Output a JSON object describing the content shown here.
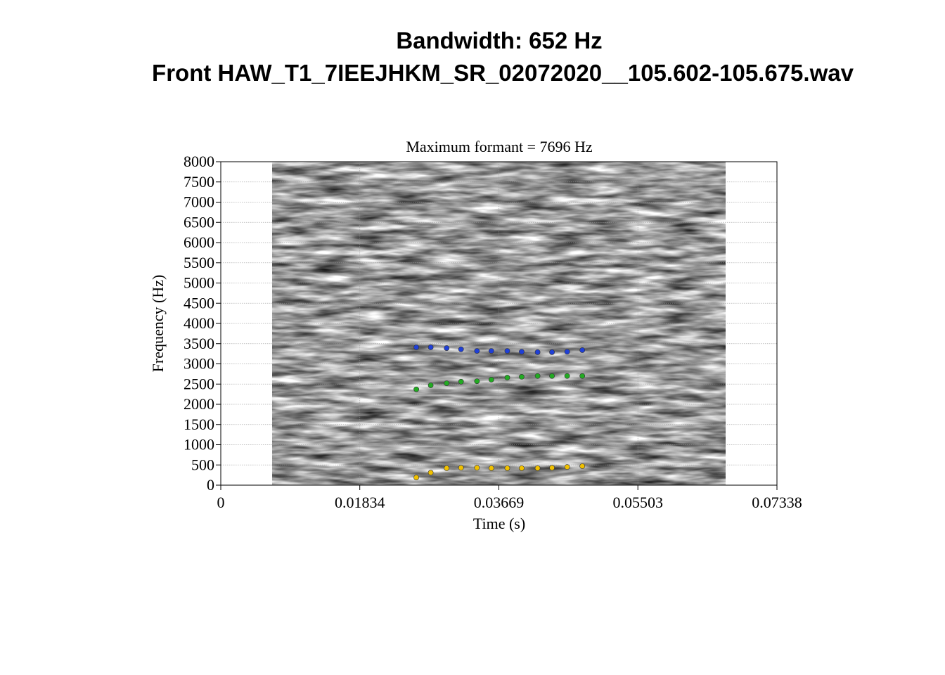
{
  "chart_data": {
    "type": "scatter",
    "title": "Bandwidth: 652 Hz",
    "subtitle": "Front HAW_T1_7IEEJHKM_SR_02072020__105.602-105.675.wav",
    "plot_title": "Maximum formant = 7696 Hz",
    "x_label": "Time (s)",
    "y_label": "Frequency (Hz)",
    "x": [
      0.0258,
      0.0277,
      0.0298,
      0.0317,
      0.0338,
      0.0357,
      0.0378,
      0.0397,
      0.0418,
      0.0437,
      0.0457,
      0.0477
    ],
    "series": [
      {
        "color": "#1f3fd6",
        "values": [
          3410,
          3410,
          3390,
          3360,
          3320,
          3320,
          3320,
          3300,
          3290,
          3290,
          3300,
          3340
        ]
      },
      {
        "color": "#22aa22",
        "values": [
          2370,
          2470,
          2520,
          2560,
          2570,
          2610,
          2660,
          2680,
          2700,
          2700,
          2700,
          2700
        ]
      },
      {
        "color": "#f0c000",
        "values": [
          190,
          310,
          420,
          430,
          430,
          420,
          420,
          420,
          420,
          430,
          450,
          470
        ]
      }
    ],
    "xlim": [
      0,
      0.07338
    ],
    "xticks": [
      0,
      0.01834,
      0.03669,
      0.05503,
      0.07338
    ],
    "ylim": [
      0,
      8000
    ],
    "yticks": [
      0,
      500,
      1000,
      1500,
      2000,
      2500,
      3000,
      3500,
      4000,
      4500,
      5000,
      5500,
      6000,
      6500,
      7000,
      7500,
      8000
    ],
    "grid": true
  }
}
